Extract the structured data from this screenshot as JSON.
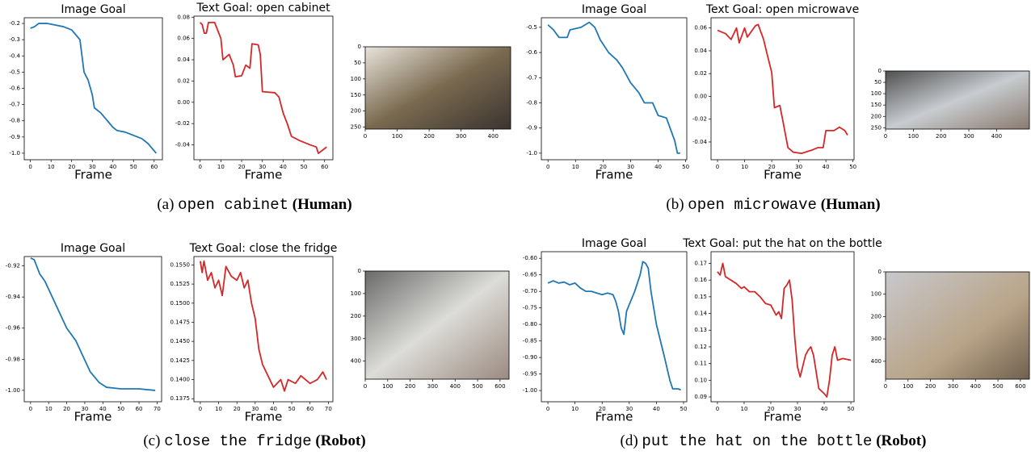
{
  "chart_data": [
    {
      "type": "line",
      "title": "Image Goal",
      "x_label": "Frame",
      "color": "#1f77b4",
      "x": [
        0,
        2,
        4,
        8,
        12,
        16,
        20,
        22,
        24,
        25,
        26,
        28,
        30,
        31,
        34,
        36,
        38,
        40,
        42,
        46,
        50,
        54,
        57,
        59,
        61
      ],
      "values": [
        -0.23,
        -0.22,
        -0.2,
        -0.2,
        -0.21,
        -0.22,
        -0.24,
        -0.27,
        -0.3,
        -0.4,
        -0.5,
        -0.55,
        -0.64,
        -0.72,
        -0.75,
        -0.78,
        -0.81,
        -0.84,
        -0.86,
        -0.87,
        -0.89,
        -0.91,
        -0.94,
        -0.97,
        -1.0
      ],
      "xlim": [
        -3,
        64
      ],
      "ylim": [
        -1.04,
        -0.165
      ],
      "xticks": [
        0,
        10,
        20,
        30,
        40,
        50,
        60
      ],
      "yticks": [
        -0.2,
        -0.3,
        -0.4,
        -0.5,
        -0.6,
        -0.7,
        -0.8,
        -0.9,
        {
          "value": -1.0,
          "label": "-1.0"
        }
      ]
    },
    {
      "type": "line",
      "title": "Text Goal: open cabinet",
      "x_label": "Frame",
      "color": "#d62728",
      "x": [
        0,
        1,
        2,
        3,
        4,
        7,
        8,
        10,
        11,
        14,
        16,
        17,
        20,
        22,
        24,
        25,
        28,
        29,
        30,
        36,
        38,
        40,
        42,
        44,
        48,
        53,
        56,
        57,
        59,
        61
      ],
      "values": [
        0.075,
        0.073,
        0.065,
        0.065,
        0.075,
        0.075,
        0.07,
        0.06,
        0.04,
        0.045,
        0.035,
        0.024,
        0.025,
        0.035,
        0.032,
        0.055,
        0.054,
        0.045,
        0.01,
        0.009,
        0.005,
        -0.01,
        -0.02,
        -0.032,
        -0.036,
        -0.04,
        -0.042,
        -0.048,
        -0.045,
        -0.042
      ],
      "xlim": [
        -3,
        64
      ],
      "ylim": [
        -0.054,
        0.081
      ],
      "xticks": [
        0,
        10,
        20,
        30,
        40,
        50,
        60
      ],
      "yticks": [
        0.08,
        0.06,
        0.04,
        0.02,
        {
          "value": 0,
          "label": "0.00"
        },
        -0.02,
        -0.04
      ]
    },
    {
      "type": "image",
      "xlim": [
        0,
        455
      ],
      "ylim": [
        256,
        0
      ],
      "xticks": [
        0,
        100,
        200,
        300,
        400
      ],
      "yticks": [
        0,
        50,
        100,
        150,
        200,
        250
      ]
    },
    {
      "type": "line",
      "title": "Image Goal",
      "x_label": "Frame",
      "color": "#1f77b4",
      "x": [
        0,
        2,
        4,
        7,
        8,
        12,
        15,
        17,
        19,
        22,
        25,
        27,
        30,
        33,
        35,
        38,
        40,
        43,
        45,
        46,
        47,
        48
      ],
      "values": [
        -0.49,
        -0.51,
        -0.54,
        -0.54,
        -0.51,
        -0.5,
        -0.48,
        -0.5,
        -0.55,
        -0.6,
        -0.63,
        -0.66,
        -0.72,
        -0.76,
        -0.8,
        -0.8,
        -0.85,
        -0.86,
        -0.92,
        -0.95,
        -1.0,
        -1.0
      ],
      "xlim": [
        -2.4,
        50.4
      ],
      "ylim": [
        -1.026,
        -0.462
      ],
      "xticks": [
        0,
        10,
        20,
        30,
        40,
        50
      ],
      "yticks": [
        -0.5,
        -0.6,
        -0.7,
        -0.8,
        -0.9,
        {
          "value": -1.0,
          "label": "-1.0"
        }
      ]
    },
    {
      "type": "line",
      "title": "Text Goal: open microwave",
      "x_label": "Frame",
      "color": "#d62728",
      "x": [
        0,
        3,
        5,
        7,
        8,
        10,
        11,
        14,
        15,
        17,
        18,
        20,
        21,
        23,
        24,
        26,
        28,
        31,
        35,
        37,
        39,
        40,
        43,
        45,
        47,
        48
      ],
      "values": [
        0.058,
        0.055,
        0.05,
        0.06,
        0.047,
        0.06,
        0.052,
        0.062,
        0.063,
        0.05,
        0.04,
        0.021,
        -0.01,
        -0.008,
        -0.02,
        -0.045,
        -0.049,
        -0.05,
        -0.047,
        -0.045,
        -0.045,
        -0.03,
        -0.03,
        -0.027,
        -0.03,
        -0.034
      ],
      "xlim": [
        -2.4,
        50.4
      ],
      "ylim": [
        -0.0556,
        0.069
      ],
      "xticks": [
        0,
        10,
        20,
        30,
        40,
        50
      ],
      "yticks": [
        0.06,
        0.04,
        0.02,
        {
          "value": 0,
          "label": "0.00"
        },
        -0.02,
        -0.04
      ]
    },
    {
      "type": "image",
      "xlim": [
        0,
        518
      ],
      "ylim": [
        256,
        0
      ],
      "xticks": [
        0,
        100,
        200,
        300,
        400
      ],
      "yticks": [
        0,
        50,
        100,
        150,
        200,
        250
      ]
    },
    {
      "type": "line",
      "title": "Image Goal",
      "x_label": "Frame",
      "color": "#1f77b4",
      "x": [
        0,
        2,
        5,
        8,
        12,
        16,
        20,
        25,
        29,
        33,
        38,
        42,
        50,
        60,
        69
      ],
      "values": [
        -0.915,
        -0.916,
        -0.925,
        -0.93,
        -0.94,
        -0.95,
        -0.96,
        -0.968,
        -0.978,
        -0.988,
        -0.995,
        -0.998,
        -0.999,
        -0.999,
        -1.0
      ],
      "xlim": [
        -3.5,
        72.5
      ],
      "ylim": [
        -1.0073,
        -0.914
      ],
      "xticks": [
        0,
        10,
        20,
        30,
        40,
        50,
        60,
        70
      ],
      "yticks": [
        -0.92,
        -0.94,
        -0.96,
        -0.98,
        {
          "value": -1.0,
          "label": "-1.00"
        }
      ]
    },
    {
      "type": "line",
      "title": "Text Goal: close the fridge",
      "x_label": "Frame",
      "color": "#d62728",
      "x": [
        0,
        1,
        2,
        4,
        6,
        8,
        10,
        12,
        14,
        17,
        20,
        22,
        24,
        26,
        28,
        30,
        32,
        34,
        36,
        40,
        44,
        46,
        48,
        52,
        55,
        60,
        64,
        67,
        69
      ],
      "values": [
        0.1555,
        0.154,
        0.1555,
        0.153,
        0.154,
        0.152,
        0.153,
        0.151,
        0.1548,
        0.1535,
        0.153,
        0.154,
        0.152,
        0.153,
        0.15,
        0.148,
        0.144,
        0.142,
        0.141,
        0.139,
        0.14,
        0.1385,
        0.14,
        0.1395,
        0.1405,
        0.1395,
        0.14,
        0.141,
        0.14
      ],
      "xlim": [
        -3.5,
        72.5
      ],
      "ylim": [
        0.1371,
        0.1561
      ],
      "xticks": [
        0,
        10,
        20,
        30,
        40,
        50,
        60,
        70
      ],
      "yticks": [
        {
          "value": 0.155,
          "label": "0.1550"
        },
        {
          "value": 0.1525,
          "label": "0.1525"
        },
        {
          "value": 0.15,
          "label": "0.1500"
        },
        {
          "value": 0.1475,
          "label": "0.1475"
        },
        {
          "value": 0.145,
          "label": "0.1450"
        },
        {
          "value": 0.1425,
          "label": "0.1425"
        },
        {
          "value": 0.14,
          "label": "0.1400"
        },
        {
          "value": 0.1375,
          "label": "0.1375"
        }
      ]
    },
    {
      "type": "image",
      "xlim": [
        0,
        640
      ],
      "ylim": [
        480,
        0
      ],
      "xticks": [
        0,
        100,
        200,
        300,
        400,
        500,
        600
      ],
      "yticks": [
        0,
        100,
        200,
        300,
        400
      ]
    },
    {
      "type": "line",
      "title": "Image Goal",
      "x_label": "Frame",
      "color": "#1f77b4",
      "x": [
        0,
        2,
        4,
        6,
        8,
        10,
        12,
        14,
        16,
        18,
        20,
        22,
        24,
        25,
        26,
        27,
        28,
        29,
        30,
        32,
        34,
        35,
        36,
        37,
        38,
        40,
        43,
        45,
        46,
        48,
        49
      ],
      "values": [
        -0.675,
        -0.668,
        -0.675,
        -0.672,
        -0.68,
        -0.675,
        -0.69,
        -0.7,
        -0.7,
        -0.705,
        -0.71,
        -0.705,
        -0.71,
        -0.73,
        -0.76,
        -0.81,
        -0.83,
        -0.76,
        -0.74,
        -0.7,
        -0.65,
        -0.61,
        -0.615,
        -0.63,
        -0.7,
        -0.8,
        -0.9,
        -0.97,
        -0.995,
        -0.995,
        -0.998
      ],
      "xlim": [
        -2.4,
        51.2
      ],
      "ylim": [
        -1.034,
        -0.58
      ],
      "xticks": [
        0,
        10,
        20,
        30,
        40,
        50
      ],
      "yticks": [
        {
          "value": -0.6,
          "label": "-0.60"
        },
        -0.65,
        {
          "value": -0.7,
          "label": "-0.70"
        },
        -0.75,
        {
          "value": -0.8,
          "label": "-0.80"
        },
        -0.85,
        {
          "value": -0.9,
          "label": "-0.90"
        },
        -0.95,
        {
          "value": -1.0,
          "label": "-1.00"
        }
      ]
    },
    {
      "type": "line",
      "title": "Text Goal: put the hat on the bottle",
      "x_label": "Frame",
      "color": "#d62728",
      "x": [
        0,
        1,
        2,
        3,
        5,
        7,
        9,
        10,
        12,
        14,
        16,
        18,
        20,
        22,
        23,
        24,
        25,
        26,
        27,
        28,
        29,
        30,
        31,
        33,
        34,
        35,
        36,
        38,
        40,
        41,
        42,
        43,
        44,
        45,
        47,
        50
      ],
      "values": [
        0.165,
        0.163,
        0.17,
        0.162,
        0.16,
        0.158,
        0.155,
        0.156,
        0.153,
        0.153,
        0.15,
        0.146,
        0.145,
        0.139,
        0.141,
        0.137,
        0.155,
        0.157,
        0.16,
        0.148,
        0.125,
        0.108,
        0.102,
        0.115,
        0.118,
        0.12,
        0.115,
        0.095,
        0.092,
        0.09,
        0.1,
        0.115,
        0.12,
        0.112,
        0.113,
        0.112
      ],
      "xlim": [
        -2.4,
        51.2
      ],
      "ylim": [
        0.0871,
        0.177
      ],
      "xticks": [
        0,
        10,
        20,
        30,
        40,
        50
      ],
      "yticks": [
        0.17,
        0.16,
        0.15,
        0.14,
        0.13,
        0.12,
        0.11,
        {
          "value": 0.1,
          "label": "0.10"
        },
        0.09
      ]
    },
    {
      "type": "image",
      "xlim": [
        0,
        640
      ],
      "ylim": [
        480,
        0
      ],
      "xticks": [
        0,
        100,
        200,
        300,
        400,
        500,
        600
      ],
      "yticks": [
        0,
        100,
        200,
        300,
        400
      ]
    }
  ],
  "captions": [
    {
      "label": "(a)",
      "task": "open cabinet",
      "agent": "(Human)"
    },
    {
      "label": "(b)",
      "task": "open microwave",
      "agent": "(Human)"
    },
    {
      "label": "(c)",
      "task": "close the fridge",
      "agent": "(Robot)"
    },
    {
      "label": "(d)",
      "task": "put the hat on the bottle",
      "agent": "(Robot)"
    }
  ]
}
